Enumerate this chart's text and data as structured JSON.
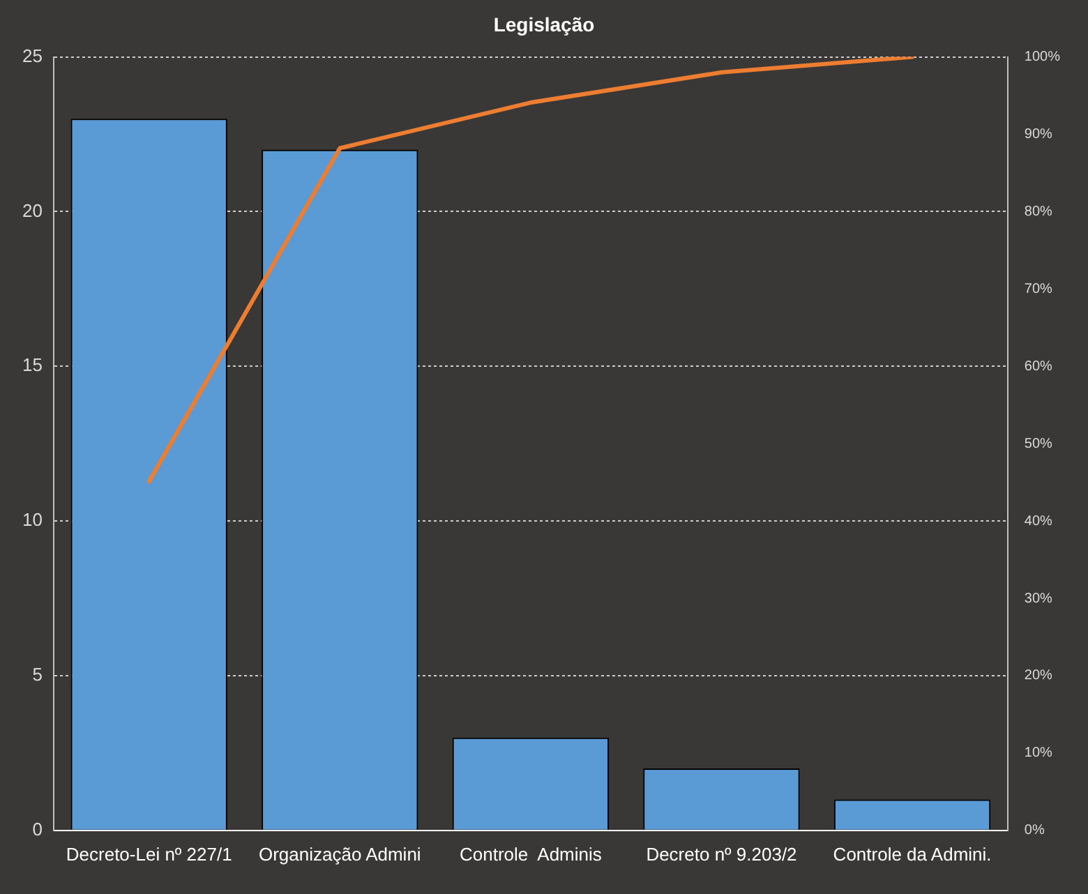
{
  "chart_data": {
    "type": "bar",
    "title": "Legislação",
    "categories": [
      "Decreto-Lei nº 227/1",
      "Organização Admini",
      "Controle  Adminis",
      "Decreto nº 9.203/2",
      "Controle da Admini."
    ],
    "series": [
      {
        "color": "#5b9bd5",
        "values": [
          23,
          22,
          3,
          2,
          1
        ]
      },
      {
        "type": "line",
        "axis": "y2",
        "color": "#ed7d31",
        "values": [
          45.1,
          88.2,
          94.1,
          98.0,
          100
        ]
      }
    ],
    "ylim": [
      0,
      25
    ],
    "yticks": [
      0,
      5,
      10,
      15,
      20,
      25
    ],
    "y2lim": [
      0,
      100
    ],
    "y2ticks": [
      {
        "value": 0,
        "label": "0%"
      },
      {
        "value": 10,
        "label": "10%"
      },
      {
        "value": 20,
        "label": "20%"
      },
      {
        "value": 30,
        "label": "30%"
      },
      {
        "value": 40,
        "label": "40%"
      },
      {
        "value": 50,
        "label": "50%"
      },
      {
        "value": 60,
        "label": "60%"
      },
      {
        "value": 70,
        "label": "70%"
      },
      {
        "value": 80,
        "label": "80%"
      },
      {
        "value": 90,
        "label": "90%"
      },
      {
        "value": 100,
        "label": "100%"
      }
    ],
    "grid": "y",
    "marker": "none"
  }
}
